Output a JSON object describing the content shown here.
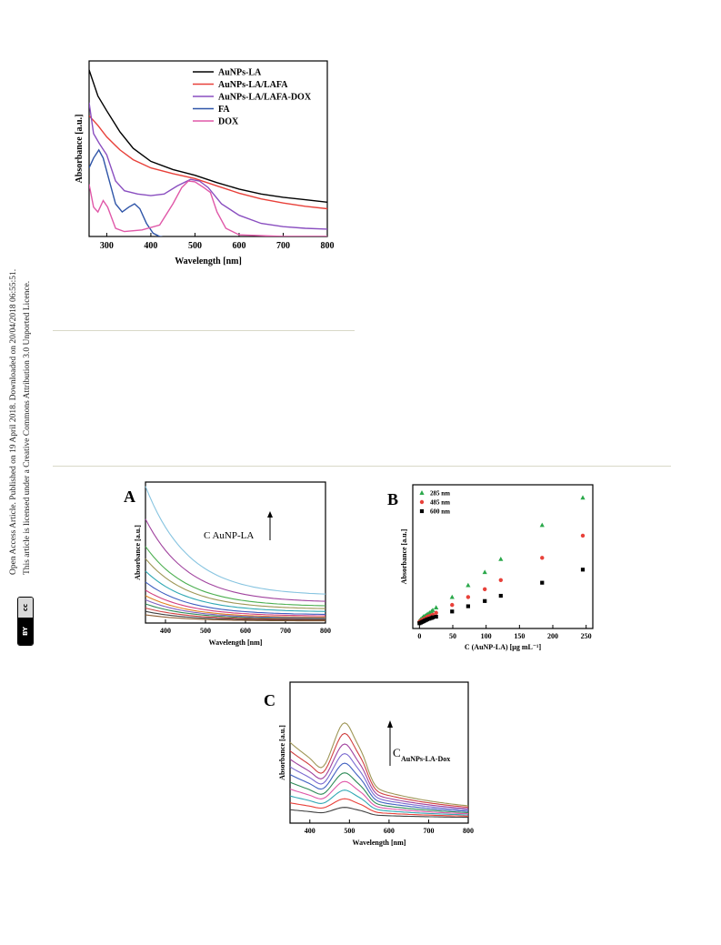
{
  "sidebar": {
    "line1": "Open Access Article. Published on 19 April 2018. Downloaded on 20/04/2018 06:55:51.",
    "line2": "This article is licensed under a Creative Commons Attribution 3.0 Unported Licence.",
    "badge_cc": "cc",
    "badge_by": "BY"
  },
  "chart_data": [
    {
      "id": "top",
      "type": "line",
      "title": "",
      "xlabel": "Wavelength [nm]",
      "ylabel": "Absorbance [a.u.]",
      "xlim": [
        260,
        800
      ],
      "ylim": [
        0,
        1
      ],
      "xticks": [
        300,
        400,
        500,
        600,
        700,
        800
      ],
      "legend_position": "top-right",
      "series": [
        {
          "name": "AuNPs-LA",
          "color": "#000000",
          "points": [
            [
              260,
              1.02
            ],
            [
              280,
              0.86
            ],
            [
              300,
              0.77
            ],
            [
              330,
              0.64
            ],
            [
              360,
              0.54
            ],
            [
              400,
              0.46
            ],
            [
              450,
              0.41
            ],
            [
              500,
              0.375
            ],
            [
              550,
              0.33
            ],
            [
              600,
              0.29
            ],
            [
              650,
              0.26
            ],
            [
              700,
              0.24
            ],
            [
              750,
              0.225
            ],
            [
              800,
              0.21
            ]
          ]
        },
        {
          "name": "AuNPs-LA/LAFA",
          "color": "#e8413a",
          "points": [
            [
              260,
              0.74
            ],
            [
              280,
              0.68
            ],
            [
              300,
              0.61
            ],
            [
              330,
              0.53
            ],
            [
              360,
              0.47
            ],
            [
              400,
              0.42
            ],
            [
              450,
              0.385
            ],
            [
              500,
              0.355
            ],
            [
              550,
              0.31
            ],
            [
              600,
              0.265
            ],
            [
              650,
              0.23
            ],
            [
              700,
              0.205
            ],
            [
              750,
              0.185
            ],
            [
              800,
              0.17
            ]
          ]
        },
        {
          "name": "AuNPs-LA/LAFA-DOX",
          "color": "#8a4fc0",
          "points": [
            [
              260,
              0.82
            ],
            [
              270,
              0.63
            ],
            [
              283,
              0.57
            ],
            [
              300,
              0.5
            ],
            [
              320,
              0.34
            ],
            [
              340,
              0.28
            ],
            [
              370,
              0.26
            ],
            [
              400,
              0.25
            ],
            [
              430,
              0.26
            ],
            [
              460,
              0.31
            ],
            [
              490,
              0.35
            ],
            [
              510,
              0.34
            ],
            [
              530,
              0.3
            ],
            [
              560,
              0.2
            ],
            [
              600,
              0.13
            ],
            [
              650,
              0.08
            ],
            [
              700,
              0.06
            ],
            [
              750,
              0.05
            ],
            [
              800,
              0.045
            ]
          ]
        },
        {
          "name": "FA",
          "color": "#2f55a8",
          "points": [
            [
              260,
              0.42
            ],
            [
              270,
              0.48
            ],
            [
              282,
              0.53
            ],
            [
              292,
              0.48
            ],
            [
              305,
              0.35
            ],
            [
              320,
              0.2
            ],
            [
              335,
              0.15
            ],
            [
              350,
              0.18
            ],
            [
              363,
              0.2
            ],
            [
              375,
              0.17
            ],
            [
              390,
              0.08
            ],
            [
              405,
              0.02
            ],
            [
              420,
              0.0
            ],
            [
              460,
              -0.02
            ],
            [
              500,
              -0.03
            ],
            [
              600,
              -0.03
            ],
            [
              800,
              -0.03
            ]
          ]
        },
        {
          "name": "DOX",
          "color": "#e058a8",
          "points": [
            [
              260,
              0.32
            ],
            [
              270,
              0.18
            ],
            [
              280,
              0.15
            ],
            [
              292,
              0.22
            ],
            [
              302,
              0.18
            ],
            [
              320,
              0.05
            ],
            [
              340,
              0.03
            ],
            [
              380,
              0.04
            ],
            [
              420,
              0.07
            ],
            [
              450,
              0.2
            ],
            [
              470,
              0.3
            ],
            [
              485,
              0.34
            ],
            [
              500,
              0.335
            ],
            [
              520,
              0.3
            ],
            [
              535,
              0.27
            ],
            [
              550,
              0.15
            ],
            [
              570,
              0.05
            ],
            [
              600,
              0.01
            ],
            [
              700,
              0.0
            ],
            [
              800,
              0.0
            ]
          ]
        }
      ]
    },
    {
      "id": "A",
      "type": "line",
      "panel_label": "A",
      "annotation": "C AuNP-LA",
      "xlabel": "Wavelength [nm]",
      "ylabel": "Absorbance [a.u.]",
      "xlim": [
        350,
        800
      ],
      "ylim": [
        0,
        1
      ],
      "xticks": [
        400,
        500,
        600,
        700,
        800
      ],
      "series": [
        {
          "color": "#87c4e0",
          "start": 1.0,
          "end": 0.2,
          "k": 4.2
        },
        {
          "color": "#a0429e",
          "start": 0.76,
          "end": 0.15,
          "k": 4.2
        },
        {
          "color": "#4caf50",
          "start": 0.56,
          "end": 0.12,
          "k": 4.2
        },
        {
          "color": "#9e9656",
          "start": 0.47,
          "end": 0.1,
          "k": 4.2
        },
        {
          "color": "#2fa8b4",
          "start": 0.38,
          "end": 0.08,
          "k": 4.2
        },
        {
          "color": "#3f5fc0",
          "start": 0.3,
          "end": 0.06,
          "k": 4.2
        },
        {
          "color": "#d04080",
          "start": 0.24,
          "end": 0.05,
          "k": 4.2
        },
        {
          "color": "#e08020",
          "start": 0.2,
          "end": 0.04,
          "k": 4.2
        },
        {
          "color": "#8060c0",
          "start": 0.17,
          "end": 0.035,
          "k": 4.2
        },
        {
          "color": "#2e8b57",
          "start": 0.14,
          "end": 0.03,
          "k": 4.2
        },
        {
          "color": "#d04040",
          "start": 0.11,
          "end": 0.025,
          "k": 4.2
        },
        {
          "color": "#404040",
          "start": 0.085,
          "end": 0.02,
          "k": 4.2
        },
        {
          "color": "#8a5a30",
          "start": 0.06,
          "end": 0.015,
          "k": 4.2
        }
      ]
    },
    {
      "id": "B",
      "type": "scatter",
      "panel_label": "B",
      "xlabel": "C (AuNP-LA) [μg mL⁻¹]",
      "ylabel": "Absorbance [a.u.]",
      "xlim": [
        -10,
        260
      ],
      "ylim": [
        0,
        1
      ],
      "xticks": [
        0,
        50,
        100,
        150,
        200,
        250
      ],
      "legend_position": "top-left",
      "series": [
        {
          "name": "285 nm",
          "color": "#2aa84a",
          "marker": "triangle",
          "x": [
            0,
            2,
            4,
            6,
            8,
            10,
            12,
            15,
            18,
            20,
            25,
            49,
            73,
            98,
            122,
            184,
            245
          ],
          "y": [
            0.06,
            0.07,
            0.08,
            0.09,
            0.095,
            0.1,
            0.11,
            0.12,
            0.13,
            0.14,
            0.16,
            0.24,
            0.33,
            0.43,
            0.53,
            0.79,
            1.0
          ]
        },
        {
          "name": "485 nm",
          "color": "#e8413a",
          "marker": "circle",
          "x": [
            0,
            2,
            4,
            6,
            8,
            10,
            12,
            15,
            18,
            20,
            25,
            49,
            73,
            98,
            122,
            184,
            245
          ],
          "y": [
            0.05,
            0.06,
            0.065,
            0.07,
            0.075,
            0.08,
            0.09,
            0.095,
            0.1,
            0.105,
            0.12,
            0.18,
            0.24,
            0.3,
            0.37,
            0.54,
            0.71
          ]
        },
        {
          "name": "600 nm",
          "color": "#000000",
          "marker": "square",
          "x": [
            0,
            2,
            4,
            6,
            8,
            10,
            12,
            15,
            18,
            20,
            25,
            49,
            73,
            98,
            122,
            184,
            245
          ],
          "y": [
            0.04,
            0.045,
            0.05,
            0.055,
            0.06,
            0.065,
            0.07,
            0.075,
            0.08,
            0.085,
            0.09,
            0.13,
            0.17,
            0.21,
            0.25,
            0.35,
            0.45
          ]
        }
      ]
    },
    {
      "id": "C",
      "type": "line",
      "panel_label": "C",
      "annotation_main": "C",
      "annotation_sub": "AuNPs-LA-Dox",
      "xlabel": "Wavelength [nm]",
      "ylabel": "Absorbance [a.u.]",
      "xlim": [
        350,
        800
      ],
      "ylim": [
        0,
        1
      ],
      "xticks": [
        400,
        500,
        600,
        700,
        800
      ],
      "series": [
        {
          "color": "#9e9656",
          "scale": 1.0
        },
        {
          "color": "#d04040",
          "scale": 0.89
        },
        {
          "color": "#a0429e",
          "scale": 0.78
        },
        {
          "color": "#7a6ad0",
          "scale": 0.68
        },
        {
          "color": "#3f5fc0",
          "scale": 0.58
        },
        {
          "color": "#2e8b57",
          "scale": 0.48
        },
        {
          "color": "#e058a8",
          "scale": 0.39
        },
        {
          "color": "#2fa8b4",
          "scale": 0.3
        },
        {
          "color": "#e8413a",
          "scale": 0.21
        },
        {
          "color": "#404040",
          "scale": 0.12
        }
      ]
    }
  ]
}
